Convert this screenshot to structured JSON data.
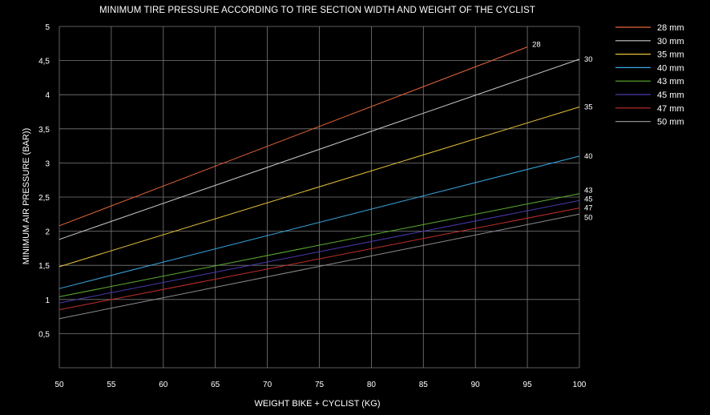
{
  "chart_data": {
    "type": "line",
    "title": "MINIMUM TIRE PRESSURE ACCORDING TO TIRE SECTION WIDTH AND WEIGHT OF THE CYCLIST",
    "xlabel": "WEIGHT BIKE + CYCLIST (KG)",
    "ylabel": "MINIMUM AIR PRESSURE (BAR))",
    "xlim": [
      50,
      100
    ],
    "ylim": [
      0,
      5
    ],
    "x_ticks": [
      "50",
      "55",
      "60",
      "65",
      "70",
      "75",
      "80",
      "85",
      "90",
      "95",
      "100"
    ],
    "y_ticks": [
      "0,5",
      "1",
      "1,5",
      "2",
      "2,5",
      "3",
      "3,5",
      "4",
      "4,5",
      "5"
    ],
    "grid": true,
    "legend_position": "top-right",
    "series": [
      {
        "name": "28 mm",
        "end_label": "28",
        "color": "#e8643a",
        "x": [
          50,
          95
        ],
        "y": [
          2.08,
          4.7
        ]
      },
      {
        "name": "30 mm",
        "end_label": "30",
        "color": "#c8c8c8",
        "x": [
          50,
          100
        ],
        "y": [
          1.88,
          4.52
        ]
      },
      {
        "name": "35 mm",
        "end_label": "35",
        "color": "#e8c23a",
        "x": [
          50,
          100
        ],
        "y": [
          1.48,
          3.82
        ]
      },
      {
        "name": "40 mm",
        "end_label": "40",
        "color": "#3aa6e0",
        "x": [
          50,
          100
        ],
        "y": [
          1.16,
          3.1
        ]
      },
      {
        "name": "43 mm",
        "end_label": "43",
        "color": "#5cae32",
        "x": [
          50,
          100
        ],
        "y": [
          1.04,
          2.55
        ]
      },
      {
        "name": "45 mm",
        "end_label": "45",
        "color": "#4a3aae",
        "x": [
          50,
          100
        ],
        "y": [
          0.95,
          2.45
        ]
      },
      {
        "name": "47 mm",
        "end_label": "47",
        "color": "#c0302a",
        "x": [
          50,
          100
        ],
        "y": [
          0.85,
          2.34
        ]
      },
      {
        "name": "50 mm",
        "end_label": "50",
        "color": "#8c8c8c",
        "x": [
          50,
          100
        ],
        "y": [
          0.72,
          2.25
        ]
      }
    ]
  }
}
